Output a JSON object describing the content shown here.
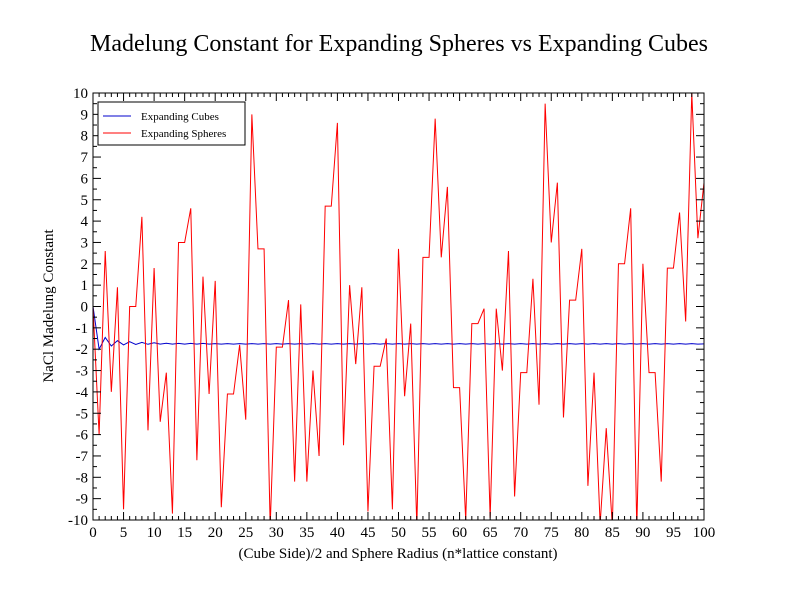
{
  "chart_data": {
    "type": "line",
    "title": "Madelung Constant for Expanding Spheres vs Expanding Cubes",
    "xlabel": "(Cube Side)/2 and Sphere Radius (n*lattice constant)",
    "ylabel": "NaCl Madelung Constant",
    "xlim": [
      0,
      100
    ],
    "ylim": [
      -10,
      10
    ],
    "x_ticks": [
      0,
      5,
      10,
      15,
      20,
      25,
      30,
      35,
      40,
      45,
      50,
      55,
      60,
      65,
      70,
      75,
      80,
      85,
      90,
      95,
      100
    ],
    "x_tick_labels": [
      "0",
      "5",
      "10",
      "15",
      "20",
      "25",
      "30",
      "35",
      "40",
      "45",
      "50",
      "55",
      "60",
      "65",
      "70",
      "75",
      "80",
      "85",
      "90",
      "95",
      "100"
    ],
    "y_ticks": [
      -10,
      -9,
      -8,
      -7,
      -6,
      -5,
      -4,
      -3,
      -2,
      -1,
      0,
      1,
      2,
      3,
      4,
      5,
      6,
      7,
      8,
      9,
      10
    ],
    "y_tick_labels": [
      "-10",
      "-9",
      "-8",
      "-7",
      "-6",
      "-5",
      "-4",
      "-3",
      "-2",
      "-1",
      "0",
      "1",
      "2",
      "3",
      "4",
      "5",
      "6",
      "7",
      "8",
      "9",
      "10"
    ],
    "grid": false,
    "legend_position": "top-left",
    "series": [
      {
        "name": "Expanding Cubes",
        "color": "#0000cc",
        "x": [
          0,
          1,
          2,
          3,
          4,
          5,
          6,
          7,
          8,
          9,
          10,
          11,
          12,
          13,
          14,
          15,
          16,
          17,
          18,
          19,
          20,
          21,
          22,
          23,
          24,
          25,
          26,
          27,
          28,
          29,
          30,
          31,
          32,
          33,
          34,
          35,
          36,
          37,
          38,
          39,
          40,
          41,
          42,
          43,
          44,
          45,
          46,
          47,
          48,
          49,
          50,
          51,
          52,
          53,
          54,
          55,
          56,
          57,
          58,
          59,
          60,
          61,
          62,
          63,
          64,
          65,
          66,
          67,
          68,
          69,
          70,
          71,
          72,
          73,
          74,
          75,
          76,
          77,
          78,
          79,
          80,
          81,
          82,
          83,
          84,
          85,
          86,
          87,
          88,
          89,
          90,
          91,
          92,
          93,
          94,
          95,
          96,
          97,
          98,
          99,
          100
        ],
        "values": [
          0,
          -2.0,
          -1.45,
          -1.85,
          -1.6,
          -1.8,
          -1.65,
          -1.78,
          -1.68,
          -1.77,
          -1.7,
          -1.76,
          -1.72,
          -1.76,
          -1.73,
          -1.76,
          -1.73,
          -1.76,
          -1.73,
          -1.76,
          -1.74,
          -1.76,
          -1.74,
          -1.76,
          -1.74,
          -1.76,
          -1.74,
          -1.76,
          -1.74,
          -1.76,
          -1.74,
          -1.76,
          -1.74,
          -1.76,
          -1.74,
          -1.76,
          -1.74,
          -1.76,
          -1.74,
          -1.76,
          -1.74,
          -1.76,
          -1.74,
          -1.76,
          -1.74,
          -1.76,
          -1.74,
          -1.76,
          -1.74,
          -1.76,
          -1.74,
          -1.76,
          -1.74,
          -1.76,
          -1.74,
          -1.76,
          -1.74,
          -1.76,
          -1.74,
          -1.76,
          -1.74,
          -1.76,
          -1.74,
          -1.76,
          -1.74,
          -1.76,
          -1.74,
          -1.76,
          -1.74,
          -1.76,
          -1.74,
          -1.76,
          -1.74,
          -1.76,
          -1.74,
          -1.76,
          -1.74,
          -1.76,
          -1.74,
          -1.76,
          -1.74,
          -1.76,
          -1.74,
          -1.76,
          -1.74,
          -1.76,
          -1.74,
          -1.76,
          -1.74,
          -1.76,
          -1.74,
          -1.76,
          -1.74,
          -1.76,
          -1.74,
          -1.76,
          -1.74,
          -1.76,
          -1.74,
          -1.76,
          -1.75
        ]
      },
      {
        "name": "Expanding Spheres",
        "color": "#ff0000",
        "x": [
          0,
          1,
          2,
          3,
          4,
          5,
          6,
          7,
          8,
          9,
          10,
          11,
          12,
          13,
          14,
          15,
          16,
          17,
          18,
          19,
          20,
          21,
          22,
          23,
          24,
          25,
          26,
          27,
          28,
          29,
          30,
          31,
          32,
          33,
          34,
          35,
          36,
          37,
          38,
          39,
          40,
          41,
          42,
          43,
          44,
          45,
          46,
          47,
          48,
          49,
          50,
          51,
          52,
          53,
          54,
          55,
          56,
          57,
          58,
          59,
          60,
          61,
          62,
          63,
          64,
          65,
          66,
          67,
          68,
          69,
          70,
          71,
          72,
          73,
          74,
          75,
          76,
          77,
          78,
          79,
          80,
          81,
          82,
          83,
          84,
          85,
          86,
          87,
          88,
          89,
          90,
          91,
          92,
          93,
          94,
          95,
          96,
          97,
          98,
          99,
          100
        ],
        "values": [
          0,
          -6.0,
          2.6,
          -4.0,
          0.9,
          -9.5,
          0.0,
          0.0,
          4.2,
          -5.8,
          1.8,
          -5.4,
          -3.1,
          -9.7,
          3.0,
          3.0,
          4.6,
          -7.2,
          1.4,
          -4.1,
          1.2,
          -9.4,
          -4.1,
          -4.1,
          -1.8,
          -5.3,
          9.0,
          2.7,
          2.7,
          -10.3,
          -1.9,
          -1.9,
          0.3,
          -8.2,
          0.1,
          -8.2,
          -3.0,
          -7.0,
          4.7,
          4.7,
          8.6,
          -6.5,
          1.0,
          -2.7,
          0.9,
          -9.6,
          -2.8,
          -2.8,
          -1.5,
          -9.5,
          2.7,
          -4.2,
          -0.8,
          -10.3,
          2.3,
          2.3,
          8.8,
          2.3,
          5.6,
          -3.8,
          -3.8,
          -10.0,
          -0.8,
          -0.8,
          -0.1,
          -9.9,
          -0.1,
          -3.0,
          2.6,
          -8.9,
          -3.1,
          -3.1,
          1.3,
          -4.6,
          9.5,
          3.0,
          5.8,
          -5.2,
          0.3,
          0.3,
          2.7,
          -8.4,
          -3.1,
          -10.2,
          -5.7,
          -10.3,
          2.0,
          2.0,
          4.6,
          -10.4,
          2.0,
          -3.1,
          -3.1,
          -8.2,
          1.8,
          1.8,
          4.4,
          -0.7,
          10.0,
          3.2,
          5.8
        ]
      }
    ]
  }
}
